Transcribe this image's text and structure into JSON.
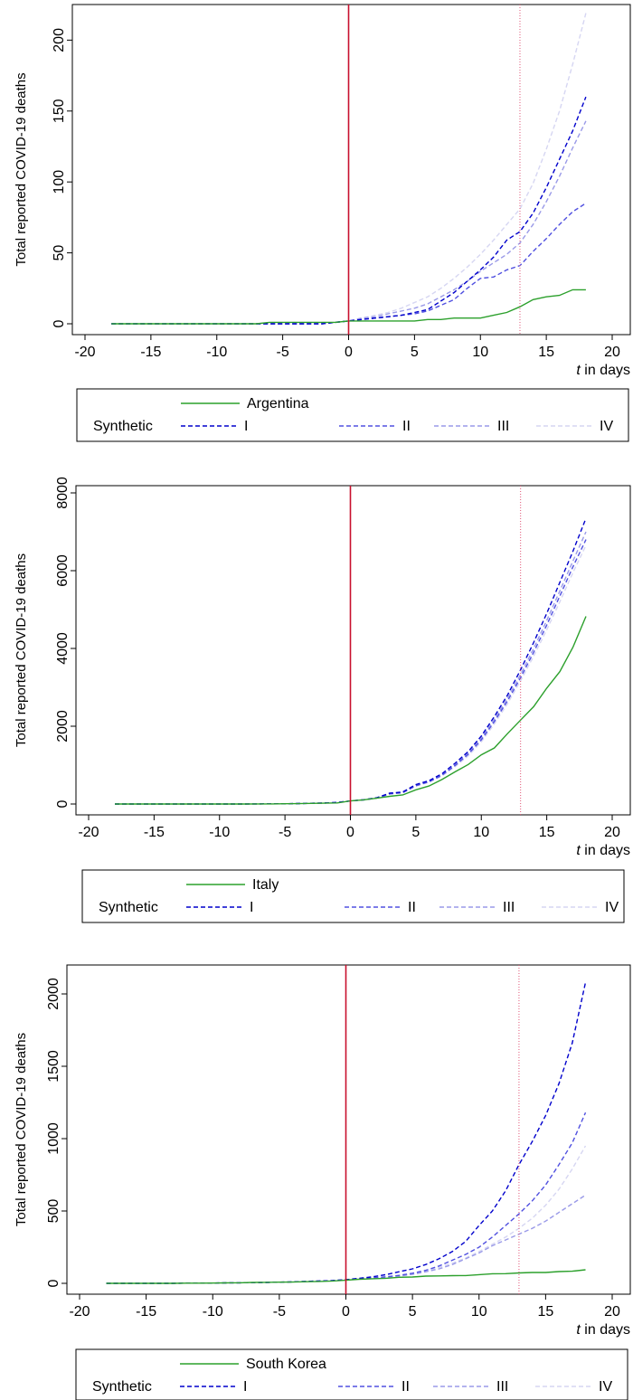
{
  "chart_data": [
    {
      "type": "line",
      "ylabel": "Total reported COVID-19 deaths",
      "xlabel": "t in days",
      "xlabel_italic": "t",
      "xlabel_rest": " in days",
      "xlim": [
        -20,
        20
      ],
      "ylim": [
        0,
        220
      ],
      "xticks": [
        -20,
        -15,
        -10,
        -5,
        0,
        5,
        10,
        15,
        20
      ],
      "yticks": [
        0,
        50,
        100,
        150,
        200
      ],
      "vlines": [
        {
          "x": 0,
          "style": "solid",
          "color": "#c8102e"
        },
        {
          "x": 13,
          "style": "dotted",
          "color": "#e05577"
        }
      ],
      "grid": false,
      "legend": {
        "position": "bottom",
        "main": "Argentina",
        "group_label": "Synthetic",
        "entries": [
          "I",
          "II",
          "III",
          "IV"
        ]
      },
      "x": [
        -18,
        -17,
        -16,
        -15,
        -14,
        -13,
        -12,
        -11,
        -10,
        -9,
        -8,
        -7,
        -6,
        -5,
        -4,
        -3,
        -2,
        -1,
        0,
        1,
        2,
        3,
        4,
        5,
        6,
        7,
        8,
        9,
        10,
        11,
        12,
        13,
        14,
        15,
        16,
        17,
        18
      ],
      "series": [
        {
          "name": "Argentina",
          "color": "#2ca02c",
          "dash": "solid",
          "values": [
            0,
            0,
            0,
            0,
            0,
            0,
            0,
            0,
            0,
            0,
            0,
            0,
            1,
            1,
            1,
            1,
            1,
            1,
            2,
            2,
            2,
            2,
            2,
            2,
            3,
            3,
            4,
            4,
            4,
            6,
            8,
            12,
            17,
            19,
            20,
            24,
            24
          ]
        },
        {
          "name": "I",
          "color": "#0000cc",
          "dash": "dashed",
          "values": [
            0,
            0,
            0,
            0,
            0,
            0,
            0,
            0,
            0,
            0,
            0,
            0,
            0,
            0,
            0,
            0,
            0,
            1,
            2,
            3,
            4,
            5,
            6,
            8,
            10,
            16,
            22,
            30,
            38,
            47,
            59,
            65,
            78,
            96,
            116,
            136,
            160
          ]
        },
        {
          "name": "II",
          "color": "#5050e0",
          "dash": "dashed",
          "values": [
            0,
            0,
            0,
            0,
            0,
            0,
            0,
            0,
            0,
            0,
            0,
            0,
            0,
            0,
            0,
            0,
            0,
            1,
            2,
            3,
            4,
            5,
            6,
            7,
            9,
            13,
            17,
            25,
            32,
            33,
            38,
            41,
            51,
            60,
            70,
            79,
            85
          ]
        },
        {
          "name": "III",
          "color": "#9a9ae8",
          "dash": "dashed",
          "values": [
            0,
            0,
            0,
            0,
            0,
            0,
            0,
            0,
            0,
            0,
            0,
            0,
            0,
            0,
            0,
            0,
            0,
            1,
            2,
            4,
            5,
            7,
            9,
            11,
            14,
            19,
            24,
            30,
            37,
            43,
            49,
            57,
            70,
            86,
            104,
            124,
            143
          ]
        },
        {
          "name": "IV",
          "color": "#d6d6f2",
          "dash": "dashed",
          "values": [
            0,
            0,
            0,
            0,
            0,
            0,
            0,
            0,
            0,
            0,
            0,
            0,
            0,
            0,
            0,
            0,
            0,
            1,
            2,
            4,
            6,
            8,
            11,
            15,
            19,
            25,
            32,
            40,
            49,
            59,
            70,
            81,
            99,
            123,
            150,
            183,
            219
          ]
        }
      ]
    },
    {
      "type": "line",
      "ylabel": "Total reported COVID-19 deaths",
      "xlabel": "t in days",
      "xlabel_italic": "t",
      "xlabel_rest": " in days",
      "xlim": [
        -20,
        20
      ],
      "ylim": [
        0,
        8000
      ],
      "xticks": [
        -20,
        -15,
        -10,
        -5,
        0,
        5,
        10,
        15,
        20
      ],
      "yticks": [
        0,
        2000,
        4000,
        6000,
        8000
      ],
      "vlines": [
        {
          "x": 0,
          "style": "solid",
          "color": "#c8102e"
        },
        {
          "x": 13,
          "style": "dotted",
          "color": "#e05577"
        }
      ],
      "grid": false,
      "legend": {
        "position": "bottom",
        "main": "Italy",
        "group_label": "Synthetic",
        "entries": [
          "I",
          "II",
          "III",
          "IV"
        ]
      },
      "x": [
        -18,
        -17,
        -16,
        -15,
        -14,
        -13,
        -12,
        -11,
        -10,
        -9,
        -8,
        -7,
        -6,
        -5,
        -4,
        -3,
        -2,
        -1,
        0,
        1,
        2,
        3,
        4,
        5,
        6,
        7,
        8,
        9,
        10,
        11,
        12,
        13,
        14,
        15,
        16,
        17,
        18
      ],
      "series": [
        {
          "name": "Italy",
          "color": "#2ca02c",
          "dash": "solid",
          "values": [
            0,
            0,
            0,
            0,
            0,
            0,
            0,
            0,
            0,
            0,
            0,
            2,
            3,
            7,
            10,
            17,
            21,
            29,
            79,
            107,
            148,
            197,
            233,
            366,
            463,
            631,
            827,
            1016,
            1266,
            1441,
            1809,
            2158,
            2503,
            2978,
            3405,
            4032,
            4825
          ]
        },
        {
          "name": "I",
          "color": "#0000cc",
          "dash": "dashed",
          "values": [
            0,
            0,
            0,
            0,
            0,
            0,
            0,
            0,
            0,
            0,
            0,
            2,
            4,
            8,
            12,
            18,
            25,
            40,
            79,
            110,
            160,
            280,
            310,
            500,
            600,
            780,
            1050,
            1350,
            1750,
            2250,
            2800,
            3450,
            4150,
            4900,
            5700,
            6500,
            7350
          ]
        },
        {
          "name": "II",
          "color": "#5050e0",
          "dash": "dashed",
          "values": [
            0,
            0,
            0,
            0,
            0,
            0,
            0,
            0,
            0,
            0,
            0,
            2,
            4,
            8,
            12,
            18,
            25,
            40,
            79,
            105,
            150,
            260,
            290,
            470,
            570,
            740,
            990,
            1280,
            1650,
            2120,
            2650,
            3250,
            3900,
            4600,
            5350,
            6100,
            6800
          ]
        },
        {
          "name": "III",
          "color": "#9a9ae8",
          "dash": "dashed",
          "values": [
            0,
            0,
            0,
            0,
            0,
            0,
            0,
            0,
            0,
            0,
            0,
            2,
            4,
            8,
            12,
            18,
            25,
            40,
            79,
            108,
            155,
            270,
            300,
            480,
            580,
            760,
            1010,
            1310,
            1700,
            2180,
            2720,
            3330,
            4000,
            4720,
            5480,
            6250,
            7000
          ]
        },
        {
          "name": "IV",
          "color": "#d6d6f2",
          "dash": "dashed",
          "values": [
            0,
            0,
            0,
            0,
            0,
            0,
            0,
            0,
            0,
            0,
            0,
            2,
            4,
            8,
            12,
            18,
            25,
            40,
            79,
            104,
            150,
            255,
            285,
            460,
            560,
            720,
            960,
            1240,
            1600,
            2060,
            2580,
            3170,
            3800,
            4480,
            5200,
            5950,
            6650
          ]
        }
      ]
    },
    {
      "type": "line",
      "ylabel": "Total reported COVID-19 deaths",
      "xlabel": "t in days",
      "xlabel_italic": "t",
      "xlabel_rest": " in days",
      "xlim": [
        -20,
        20
      ],
      "ylim": [
        0,
        2150
      ],
      "xticks": [
        -20,
        -15,
        -10,
        -5,
        0,
        5,
        10,
        15,
        20
      ],
      "yticks": [
        0,
        500,
        1000,
        1500,
        2000
      ],
      "vlines": [
        {
          "x": 0,
          "style": "solid",
          "color": "#c8102e"
        },
        {
          "x": 13,
          "style": "dotted",
          "color": "#e05577"
        }
      ],
      "grid": false,
      "legend": {
        "position": "bottom",
        "main": "South Korea",
        "group_label": "Synthetic",
        "entries": [
          "I",
          "II",
          "III",
          "IV"
        ]
      },
      "x": [
        -18,
        -17,
        -16,
        -15,
        -14,
        -13,
        -12,
        -11,
        -10,
        -9,
        -8,
        -7,
        -6,
        -5,
        -4,
        -3,
        -2,
        -1,
        0,
        1,
        2,
        3,
        4,
        5,
        6,
        7,
        8,
        9,
        10,
        11,
        12,
        13,
        14,
        15,
        16,
        17,
        18
      ],
      "series": [
        {
          "name": "South Korea",
          "color": "#2ca02c",
          "dash": "solid",
          "values": [
            0,
            0,
            0,
            0,
            0,
            0,
            1,
            1,
            2,
            3,
            4,
            6,
            7,
            8,
            9,
            11,
            13,
            16,
            22,
            28,
            32,
            35,
            42,
            44,
            50,
            51,
            53,
            54,
            60,
            66,
            67,
            72,
            75,
            75,
            81,
            84,
            94
          ]
        },
        {
          "name": "I",
          "color": "#0000cc",
          "dash": "dashed",
          "values": [
            0,
            0,
            0,
            0,
            0,
            0,
            1,
            1,
            2,
            3,
            4,
            5,
            6,
            8,
            10,
            13,
            16,
            19,
            25,
            35,
            45,
            60,
            80,
            100,
            130,
            170,
            220,
            290,
            400,
            500,
            640,
            820,
            980,
            1160,
            1380,
            1660,
            2080
          ]
        },
        {
          "name": "II",
          "color": "#5050e0",
          "dash": "dashed",
          "values": [
            0,
            0,
            0,
            0,
            0,
            0,
            1,
            1,
            2,
            3,
            4,
            5,
            6,
            8,
            10,
            13,
            16,
            19,
            25,
            32,
            38,
            45,
            55,
            70,
            90,
            120,
            160,
            200,
            250,
            320,
            400,
            480,
            570,
            680,
            820,
            970,
            1180
          ]
        },
        {
          "name": "III",
          "color": "#9a9ae8",
          "dash": "dashed",
          "values": [
            0,
            0,
            0,
            0,
            0,
            0,
            1,
            1,
            2,
            3,
            4,
            5,
            6,
            8,
            10,
            13,
            16,
            19,
            25,
            30,
            35,
            42,
            50,
            62,
            80,
            100,
            130,
            170,
            210,
            260,
            300,
            340,
            380,
            430,
            490,
            550,
            610
          ]
        },
        {
          "name": "IV",
          "color": "#d6d6f2",
          "dash": "dashed",
          "values": [
            0,
            0,
            0,
            0,
            0,
            0,
            1,
            1,
            2,
            3,
            4,
            5,
            6,
            8,
            10,
            13,
            16,
            19,
            25,
            31,
            36,
            44,
            53,
            66,
            85,
            110,
            140,
            175,
            220,
            270,
            320,
            380,
            450,
            540,
            650,
            790,
            950
          ]
        }
      ]
    }
  ]
}
